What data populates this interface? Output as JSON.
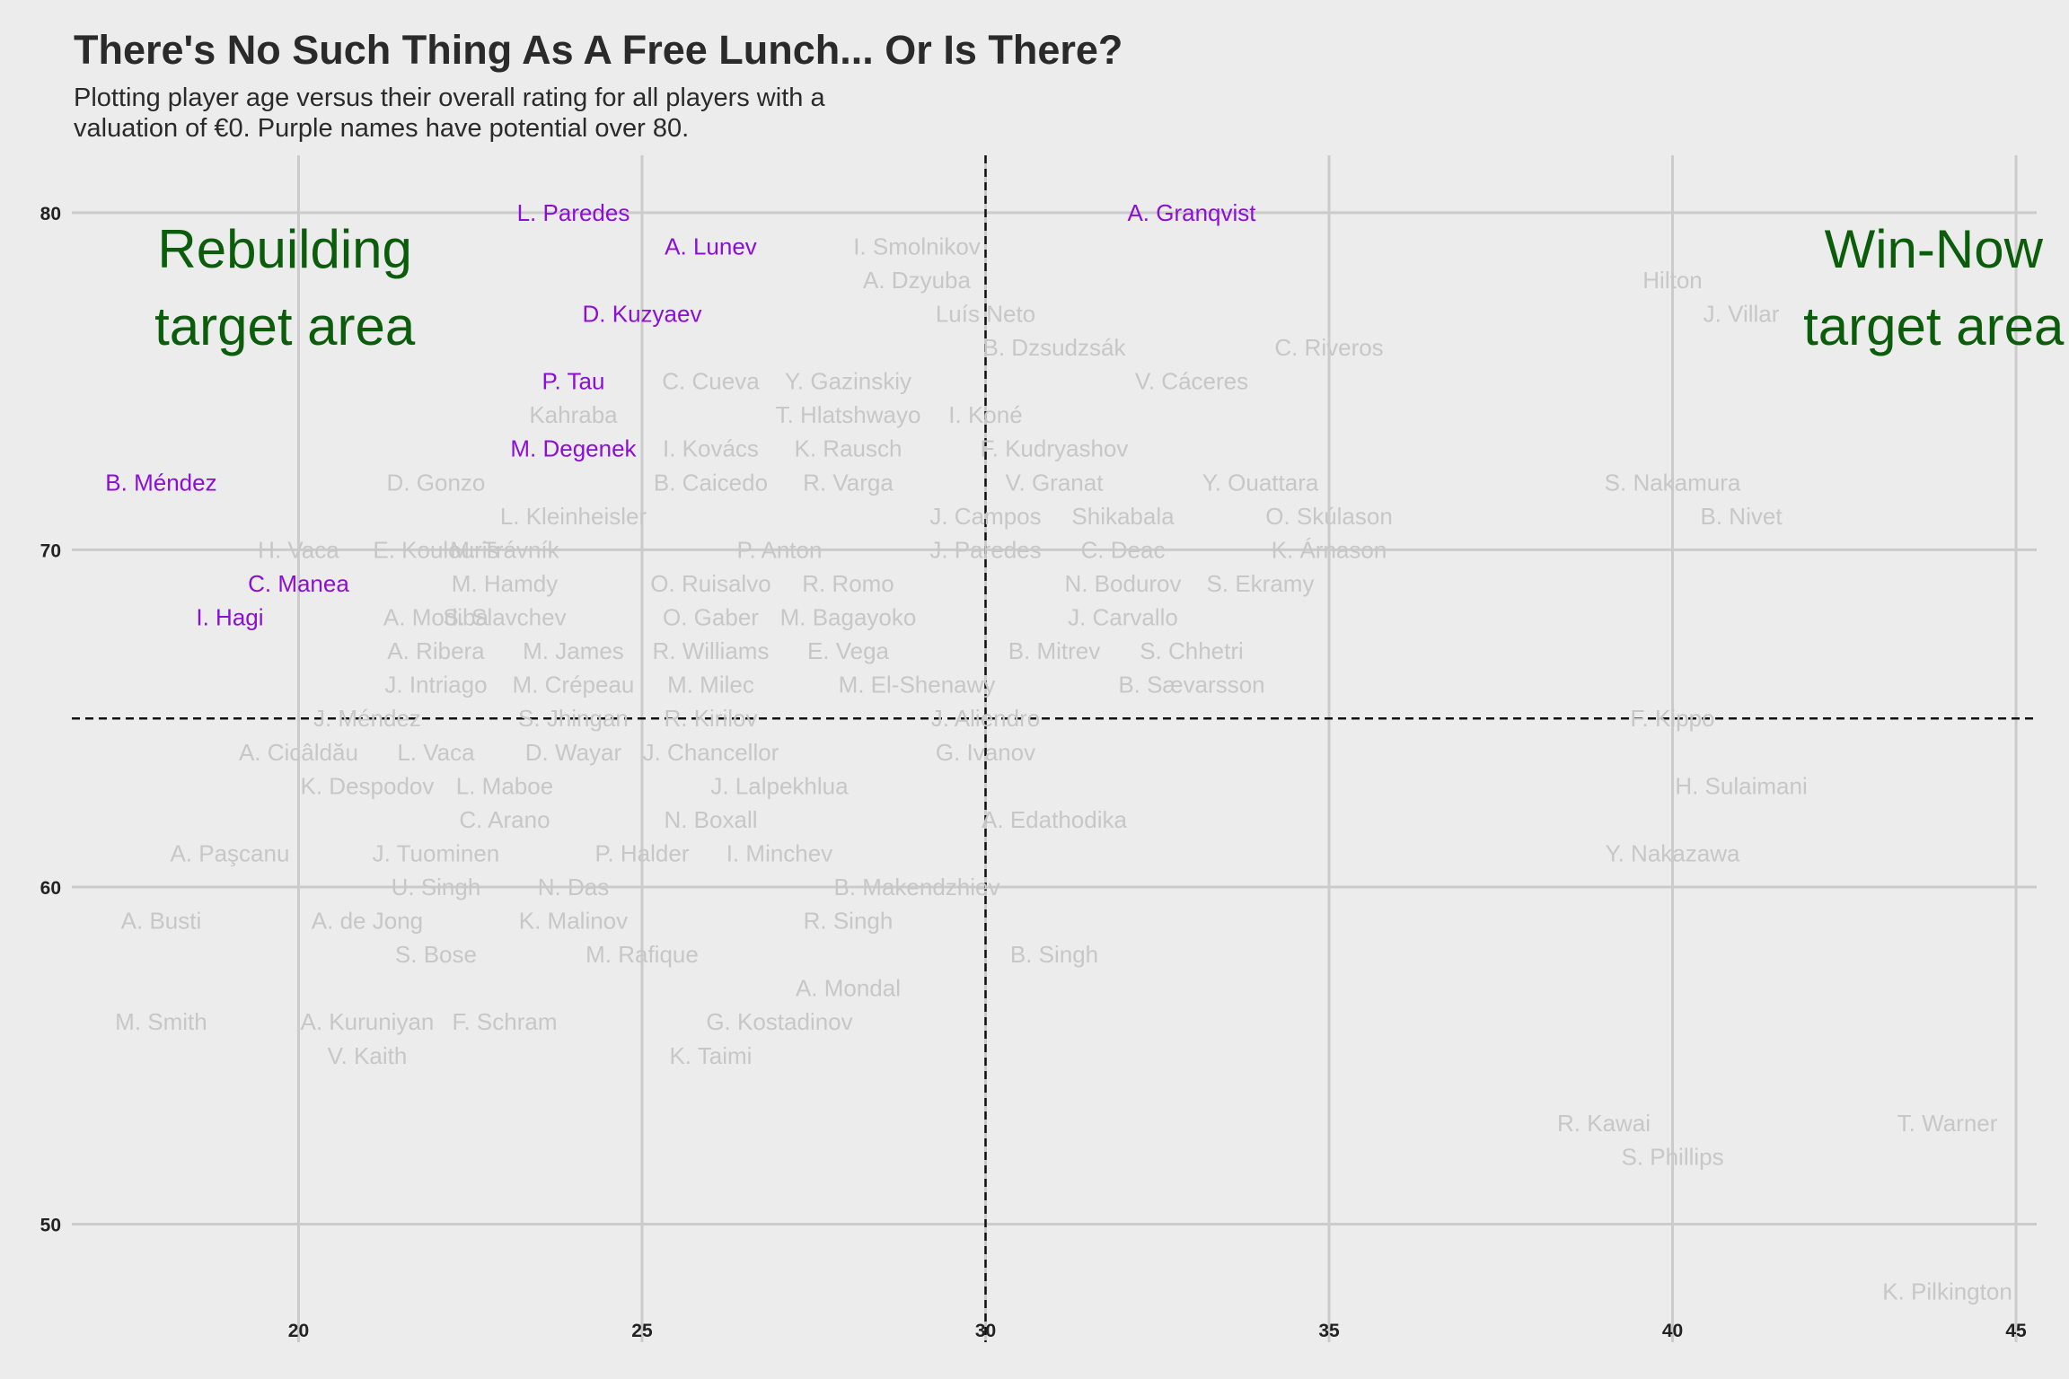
{
  "title": "There's No Such Thing As A Free Lunch... Or Is There?",
  "subtitle_lines": [
    "Plotting player age versus their overall rating for all players with a",
    "valuation of €0. Purple names have potential over 80."
  ],
  "colors": {
    "background": "#ececec",
    "grid": "#cbcbcb",
    "high_potential": "#8b0fd6",
    "normal": "#c7c7c7",
    "target_text": "#0b5c0b",
    "reference_line": "#111111"
  },
  "chart_data": {
    "type": "scatter",
    "xlabel": "",
    "ylabel": "",
    "xlim": [
      16.7,
      45.3
    ],
    "ylim": [
      46.5,
      81.7
    ],
    "xticks": [
      20,
      25,
      30,
      35,
      40,
      45
    ],
    "yticks": [
      50,
      60,
      70,
      80
    ],
    "grid": true,
    "reference_lines": {
      "x": 30,
      "y": 65
    },
    "annotations": [
      {
        "lines": [
          "Rebuilding",
          "target area"
        ],
        "x": 19.8,
        "y": 78.9
      },
      {
        "lines": [
          "Win-Now",
          "target area"
        ],
        "x": 43.8,
        "y": 78.9
      }
    ],
    "points": [
      {
        "name": "L. Paredes",
        "x": 24,
        "y": 80,
        "high_potential": true
      },
      {
        "name": "A. Granqvist",
        "x": 33,
        "y": 80,
        "high_potential": true
      },
      {
        "name": "A. Lunev",
        "x": 26,
        "y": 79,
        "high_potential": true
      },
      {
        "name": "I. Smolnikov",
        "x": 29,
        "y": 79,
        "high_potential": false
      },
      {
        "name": "A. Dzyuba",
        "x": 29,
        "y": 78,
        "high_potential": false
      },
      {
        "name": "Hilton",
        "x": 40,
        "y": 78,
        "high_potential": false
      },
      {
        "name": "D. Kuzyaev",
        "x": 25,
        "y": 77,
        "high_potential": true
      },
      {
        "name": "Luís Neto",
        "x": 30,
        "y": 77,
        "high_potential": false
      },
      {
        "name": "J. Villar",
        "x": 41,
        "y": 77,
        "high_potential": false
      },
      {
        "name": "B. Dzsudzsák",
        "x": 31,
        "y": 76,
        "high_potential": false
      },
      {
        "name": "C. Riveros",
        "x": 35,
        "y": 76,
        "high_potential": false
      },
      {
        "name": "P. Tau",
        "x": 24,
        "y": 75,
        "high_potential": true
      },
      {
        "name": "C. Cueva",
        "x": 26,
        "y": 75,
        "high_potential": false
      },
      {
        "name": "Y. Gazinskiy",
        "x": 28,
        "y": 75,
        "high_potential": false
      },
      {
        "name": "V. Cáceres",
        "x": 33,
        "y": 75,
        "high_potential": false
      },
      {
        "name": "Kahraba",
        "x": 24,
        "y": 74,
        "high_potential": false
      },
      {
        "name": "T. Hlatshwayo",
        "x": 28,
        "y": 74,
        "high_potential": false
      },
      {
        "name": "I. Koné",
        "x": 30,
        "y": 74,
        "high_potential": false
      },
      {
        "name": "M. Degenek",
        "x": 24,
        "y": 73,
        "high_potential": true
      },
      {
        "name": "I. Kovács",
        "x": 26,
        "y": 73,
        "high_potential": false
      },
      {
        "name": "K. Rausch",
        "x": 28,
        "y": 73,
        "high_potential": false
      },
      {
        "name": "F. Kudryashov",
        "x": 31,
        "y": 73,
        "high_potential": false
      },
      {
        "name": "B. Méndez",
        "x": 18,
        "y": 72,
        "high_potential": true
      },
      {
        "name": "D. Gonzo",
        "x": 22,
        "y": 72,
        "high_potential": false
      },
      {
        "name": "B. Caicedo",
        "x": 26,
        "y": 72,
        "high_potential": false
      },
      {
        "name": "R. Varga",
        "x": 28,
        "y": 72,
        "high_potential": false
      },
      {
        "name": "V. Granat",
        "x": 31,
        "y": 72,
        "high_potential": false
      },
      {
        "name": "Y. Ouattara",
        "x": 34,
        "y": 72,
        "high_potential": false
      },
      {
        "name": "S. Nakamura",
        "x": 40,
        "y": 72,
        "high_potential": false
      },
      {
        "name": "L. Kleinheisler",
        "x": 24,
        "y": 71,
        "high_potential": false
      },
      {
        "name": "J. Campos",
        "x": 30,
        "y": 71,
        "high_potential": false
      },
      {
        "name": "Shikabala",
        "x": 32,
        "y": 71,
        "high_potential": false
      },
      {
        "name": "O. Skúlason",
        "x": 35,
        "y": 71,
        "high_potential": false
      },
      {
        "name": "B. Nivet",
        "x": 41,
        "y": 71,
        "high_potential": false
      },
      {
        "name": "H. Vaca",
        "x": 20,
        "y": 70,
        "high_potential": false
      },
      {
        "name": "E. Koulouris",
        "x": 22,
        "y": 70,
        "high_potential": false
      },
      {
        "name": "M. Trávník",
        "x": 23,
        "y": 70,
        "high_potential": false
      },
      {
        "name": "P. Anton",
        "x": 27,
        "y": 70,
        "high_potential": false
      },
      {
        "name": "J. Paredes",
        "x": 30,
        "y": 70,
        "high_potential": false
      },
      {
        "name": "C. Deac",
        "x": 32,
        "y": 70,
        "high_potential": false
      },
      {
        "name": "K. Árnason",
        "x": 35,
        "y": 70,
        "high_potential": false
      },
      {
        "name": "C. Manea",
        "x": 20,
        "y": 69,
        "high_potential": true
      },
      {
        "name": "M. Hamdy",
        "x": 23,
        "y": 69,
        "high_potential": false
      },
      {
        "name": "O. Ruisalvo",
        "x": 26,
        "y": 69,
        "high_potential": false
      },
      {
        "name": "R. Romo",
        "x": 28,
        "y": 69,
        "high_potential": false
      },
      {
        "name": "N. Bodurov",
        "x": 32,
        "y": 69,
        "high_potential": false
      },
      {
        "name": "S. Ekramy",
        "x": 34,
        "y": 69,
        "high_potential": false
      },
      {
        "name": "I. Hagi",
        "x": 19,
        "y": 68,
        "high_potential": true
      },
      {
        "name": "A. Modiba",
        "x": 22,
        "y": 68,
        "high_potential": false
      },
      {
        "name": "S. Slavchev",
        "x": 23,
        "y": 68,
        "high_potential": false
      },
      {
        "name": "O. Gaber",
        "x": 26,
        "y": 68,
        "high_potential": false
      },
      {
        "name": "M. Bagayoko",
        "x": 28,
        "y": 68,
        "high_potential": false
      },
      {
        "name": "J. Carvallo",
        "x": 32,
        "y": 68,
        "high_potential": false
      },
      {
        "name": "A. Ribera",
        "x": 22,
        "y": 67,
        "high_potential": false
      },
      {
        "name": "M. James",
        "x": 24,
        "y": 67,
        "high_potential": false
      },
      {
        "name": "R. Williams",
        "x": 26,
        "y": 67,
        "high_potential": false
      },
      {
        "name": "E. Vega",
        "x": 28,
        "y": 67,
        "high_potential": false
      },
      {
        "name": "B. Mitrev",
        "x": 31,
        "y": 67,
        "high_potential": false
      },
      {
        "name": "S. Chhetri",
        "x": 33,
        "y": 67,
        "high_potential": false
      },
      {
        "name": "J. Intriago",
        "x": 22,
        "y": 66,
        "high_potential": false
      },
      {
        "name": "M. Crépeau",
        "x": 24,
        "y": 66,
        "high_potential": false
      },
      {
        "name": "M. Milec",
        "x": 26,
        "y": 66,
        "high_potential": false
      },
      {
        "name": "M. El-Shenawy",
        "x": 29,
        "y": 66,
        "high_potential": false
      },
      {
        "name": "B. Sævarsson",
        "x": 33,
        "y": 66,
        "high_potential": false
      },
      {
        "name": "J. Méndez",
        "x": 21,
        "y": 65,
        "high_potential": false
      },
      {
        "name": "S. Jhingan",
        "x": 24,
        "y": 65,
        "high_potential": false
      },
      {
        "name": "R. Kirilov",
        "x": 26,
        "y": 65,
        "high_potential": false
      },
      {
        "name": "J. Aliendro",
        "x": 30,
        "y": 65,
        "high_potential": false
      },
      {
        "name": "F. Kippo",
        "x": 40,
        "y": 65,
        "high_potential": false
      },
      {
        "name": "A. Cicâldău",
        "x": 20,
        "y": 64,
        "high_potential": false
      },
      {
        "name": "L. Vaca",
        "x": 22,
        "y": 64,
        "high_potential": false
      },
      {
        "name": "D. Wayar",
        "x": 24,
        "y": 64,
        "high_potential": false
      },
      {
        "name": "J. Chancellor",
        "x": 26,
        "y": 64,
        "high_potential": false
      },
      {
        "name": "G. Ivanov",
        "x": 30,
        "y": 64,
        "high_potential": false
      },
      {
        "name": "K. Despodov",
        "x": 21,
        "y": 63,
        "high_potential": false
      },
      {
        "name": "L. Maboe",
        "x": 23,
        "y": 63,
        "high_potential": false
      },
      {
        "name": "J. Lalpekhlua",
        "x": 27,
        "y": 63,
        "high_potential": false
      },
      {
        "name": "H. Sulaimani",
        "x": 41,
        "y": 63,
        "high_potential": false
      },
      {
        "name": "C. Arano",
        "x": 23,
        "y": 62,
        "high_potential": false
      },
      {
        "name": "N. Boxall",
        "x": 26,
        "y": 62,
        "high_potential": false
      },
      {
        "name": "A. Edathodika",
        "x": 31,
        "y": 62,
        "high_potential": false
      },
      {
        "name": "A. Paşcanu",
        "x": 19,
        "y": 61,
        "high_potential": false
      },
      {
        "name": "J. Tuominen",
        "x": 22,
        "y": 61,
        "high_potential": false
      },
      {
        "name": "P. Halder",
        "x": 25,
        "y": 61,
        "high_potential": false
      },
      {
        "name": "I. Minchev",
        "x": 27,
        "y": 61,
        "high_potential": false
      },
      {
        "name": "Y. Nakazawa",
        "x": 40,
        "y": 61,
        "high_potential": false
      },
      {
        "name": "U. Singh",
        "x": 22,
        "y": 60,
        "high_potential": false
      },
      {
        "name": "N. Das",
        "x": 24,
        "y": 60,
        "high_potential": false
      },
      {
        "name": "B. Makendzhiev",
        "x": 29,
        "y": 60,
        "high_potential": false
      },
      {
        "name": "A. Busti",
        "x": 18,
        "y": 59,
        "high_potential": false
      },
      {
        "name": "A. de Jong",
        "x": 21,
        "y": 59,
        "high_potential": false
      },
      {
        "name": "K. Malinov",
        "x": 24,
        "y": 59,
        "high_potential": false
      },
      {
        "name": "R. Singh",
        "x": 28,
        "y": 59,
        "high_potential": false
      },
      {
        "name": "S. Bose",
        "x": 22,
        "y": 58,
        "high_potential": false
      },
      {
        "name": "M. Rafique",
        "x": 25,
        "y": 58,
        "high_potential": false
      },
      {
        "name": "B. Singh",
        "x": 31,
        "y": 58,
        "high_potential": false
      },
      {
        "name": "A. Mondal",
        "x": 28,
        "y": 57,
        "high_potential": false
      },
      {
        "name": "M. Smith",
        "x": 18,
        "y": 56,
        "high_potential": false
      },
      {
        "name": "A. Kuruniyan",
        "x": 21,
        "y": 56,
        "high_potential": false
      },
      {
        "name": "F. Schram",
        "x": 23,
        "y": 56,
        "high_potential": false
      },
      {
        "name": "G. Kostadinov",
        "x": 27,
        "y": 56,
        "high_potential": false
      },
      {
        "name": "V. Kaith",
        "x": 21,
        "y": 55,
        "high_potential": false
      },
      {
        "name": "K. Taimi",
        "x": 26,
        "y": 55,
        "high_potential": false
      },
      {
        "name": "R. Kawai",
        "x": 39,
        "y": 53,
        "high_potential": false
      },
      {
        "name": "T. Warner",
        "x": 44,
        "y": 53,
        "high_potential": false
      },
      {
        "name": "S. Phillips",
        "x": 40,
        "y": 52,
        "high_potential": false
      },
      {
        "name": "K. Pilkington",
        "x": 44,
        "y": 48,
        "high_potential": false
      }
    ]
  }
}
